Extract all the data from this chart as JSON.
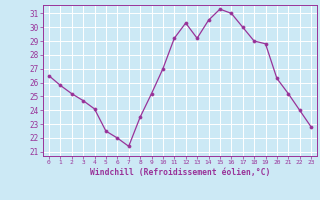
{
  "x": [
    0,
    1,
    2,
    3,
    4,
    5,
    6,
    7,
    8,
    9,
    10,
    11,
    12,
    13,
    14,
    15,
    16,
    17,
    18,
    19,
    20,
    21,
    22,
    23
  ],
  "y": [
    26.5,
    25.8,
    25.2,
    24.7,
    24.1,
    22.5,
    22.0,
    21.4,
    23.5,
    25.2,
    27.0,
    29.2,
    30.3,
    29.2,
    30.5,
    31.3,
    31.0,
    30.0,
    29.0,
    28.8,
    26.3,
    25.2,
    24.0,
    22.8
  ],
  "line_color": "#993399",
  "marker_color": "#993399",
  "bg_color": "#cce9f5",
  "grid_color": "#ffffff",
  "xlabel": "Windchill (Refroidissement éolien,°C)",
  "xlabel_color": "#993399",
  "tick_color": "#993399",
  "yticks": [
    21,
    22,
    23,
    24,
    25,
    26,
    27,
    28,
    29,
    30,
    31
  ],
  "ylim": [
    20.7,
    31.6
  ],
  "xlim": [
    -0.5,
    23.5
  ],
  "figsize": [
    3.2,
    2.0
  ],
  "dpi": 100
}
